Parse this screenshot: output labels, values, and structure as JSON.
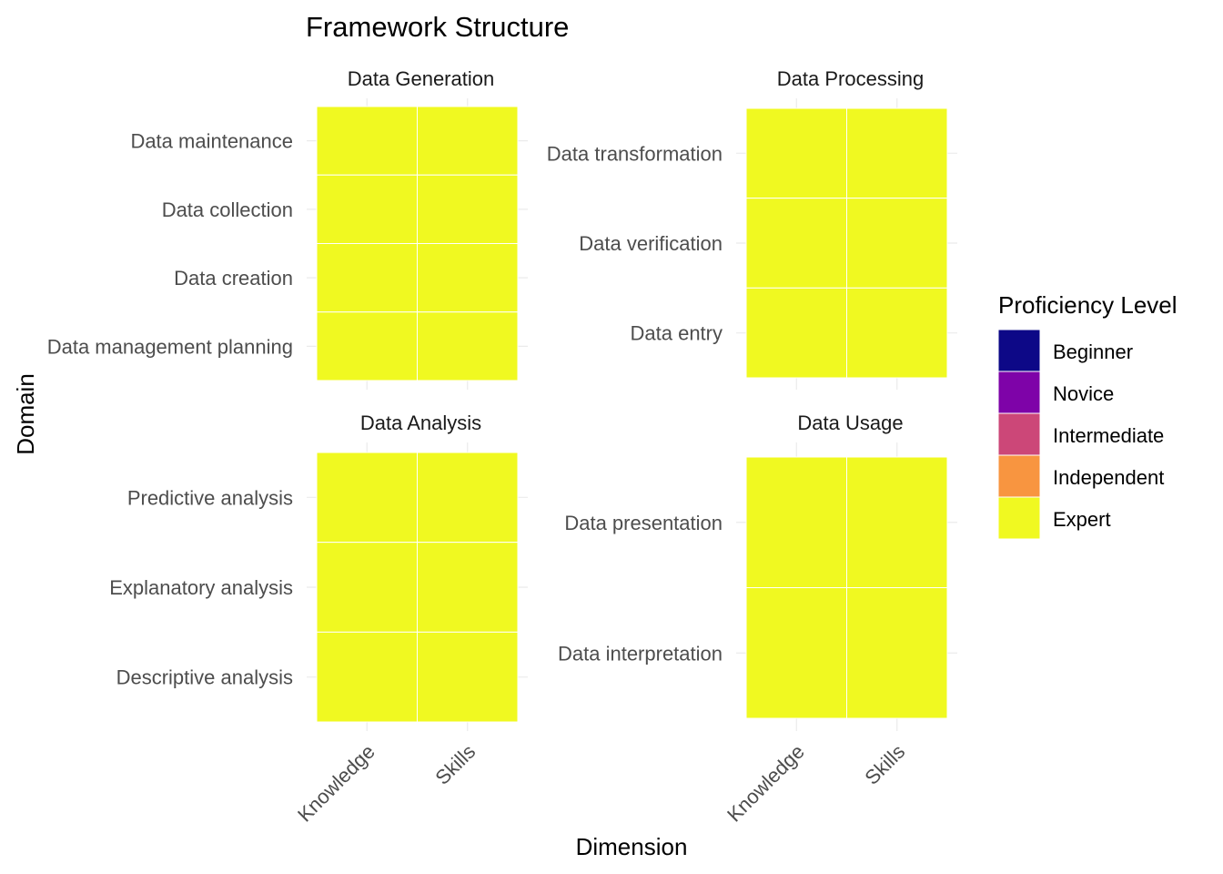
{
  "chart_data": {
    "type": "heatmap",
    "title": "Framework Structure",
    "xlabel": "Dimension",
    "ylabel": "Domain",
    "x_categories": [
      "Knowledge",
      "Skills"
    ],
    "legend": {
      "title": "Proficiency Level",
      "position": "right",
      "levels": [
        {
          "label": "Beginner",
          "color": "#0d0887"
        },
        {
          "label": "Novice",
          "color": "#7e03a8"
        },
        {
          "label": "Intermediate",
          "color": "#cc4778"
        },
        {
          "label": "Independent",
          "color": "#f89540"
        },
        {
          "label": "Expert",
          "color": "#f0f921"
        }
      ]
    },
    "grid": true,
    "facets": [
      {
        "title": "Data Generation",
        "rows": [
          "Data maintenance",
          "Data collection",
          "Data creation",
          "Data management planning"
        ],
        "values": [
          [
            "Expert",
            "Expert"
          ],
          [
            "Expert",
            "Expert"
          ],
          [
            "Expert",
            "Expert"
          ],
          [
            "Expert",
            "Expert"
          ]
        ]
      },
      {
        "title": "Data Processing",
        "rows": [
          "Data transformation",
          "Data verification",
          "Data entry"
        ],
        "values": [
          [
            "Expert",
            "Expert"
          ],
          [
            "Expert",
            "Expert"
          ],
          [
            "Expert",
            "Expert"
          ]
        ]
      },
      {
        "title": "Data Analysis",
        "rows": [
          "Predictive analysis",
          "Explanatory analysis",
          "Descriptive analysis"
        ],
        "values": [
          [
            "Expert",
            "Expert"
          ],
          [
            "Expert",
            "Expert"
          ],
          [
            "Expert",
            "Expert"
          ]
        ]
      },
      {
        "title": "Data Usage",
        "rows": [
          "Data presentation",
          "Data interpretation"
        ],
        "values": [
          [
            "Expert",
            "Expert"
          ],
          [
            "Expert",
            "Expert"
          ]
        ]
      }
    ]
  }
}
